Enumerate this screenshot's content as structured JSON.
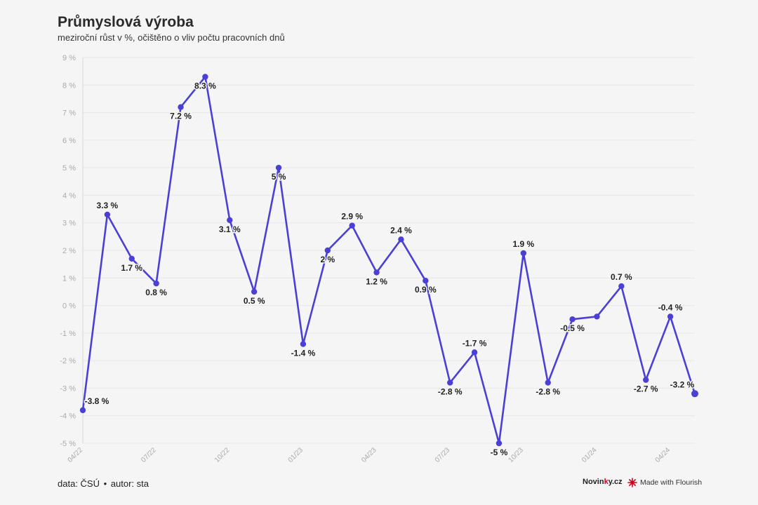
{
  "title": "Průmyslová výroba",
  "subtitle": "meziroční růst v %, očištěno o vliv počtu pracovních dnů",
  "footer": {
    "data_label": "data: ČSÚ",
    "separator": "•",
    "author_label": "autor: sta",
    "brand_prefix": "Novin",
    "brand_accent": "k",
    "brand_suffix": "y.cz",
    "made_with": "Made with Flourish"
  },
  "colors": {
    "line": "#4a3fd6",
    "grid": "#e6e6e6",
    "axis_text": "#aaaaaa",
    "label_text": "#222222",
    "brand_accent": "#d0021b"
  },
  "chart_data": {
    "type": "line",
    "title": "Průmyslová výroba",
    "subtitle": "meziroční růst v %, očištěno o vliv počtu pracovních dnů",
    "x": [
      "04/22",
      "05/22",
      "06/22",
      "07/22",
      "08/22",
      "09/22",
      "10/22",
      "11/22",
      "12/22",
      "01/23",
      "02/23",
      "03/23",
      "04/23",
      "05/23",
      "06/23",
      "07/23",
      "08/23",
      "09/23",
      "10/23",
      "11/23",
      "12/23",
      "01/24",
      "02/24",
      "03/24",
      "04/24",
      "05/24"
    ],
    "x_tick_labels": [
      "04/22",
      "07/22",
      "10/22",
      "01/23",
      "04/23",
      "07/23",
      "10/23",
      "01/24",
      "04/24"
    ],
    "series": [
      {
        "values": [
          -3.8,
          3.3,
          1.7,
          0.8,
          7.2,
          8.3,
          3.1,
          0.5,
          5,
          -1.4,
          2,
          2.9,
          1.2,
          2.4,
          0.9,
          -2.8,
          -1.7,
          -5,
          1.9,
          -2.8,
          -0.5,
          -0.4,
          0.7,
          -2.7,
          -0.4,
          -3.2
        ],
        "labels": [
          "-3.8 %",
          "3.3 %",
          "1.7 %",
          "0.8 %",
          "7.2 %",
          "8.3 %",
          "3.1 %",
          "0.5 %",
          "5 %",
          "-1.4 %",
          "2 %",
          "2.9 %",
          "1.2 %",
          "2.4 %",
          "0.9 %",
          "-2.8 %",
          "-1.7 %",
          "-5 %",
          "1.9 %",
          "-2.8 %",
          "-0.5 %",
          "",
          "0.7 %",
          "-2.7 %",
          "-0.4 %",
          "-3.2 %"
        ]
      }
    ],
    "y_ticks": [
      -5,
      -4,
      -3,
      -2,
      -1,
      0,
      1,
      2,
      3,
      4,
      5,
      6,
      7,
      8,
      9
    ],
    "y_tick_suffix": " %",
    "ylim": [
      -5,
      9
    ],
    "grid": true,
    "legend": "none"
  }
}
